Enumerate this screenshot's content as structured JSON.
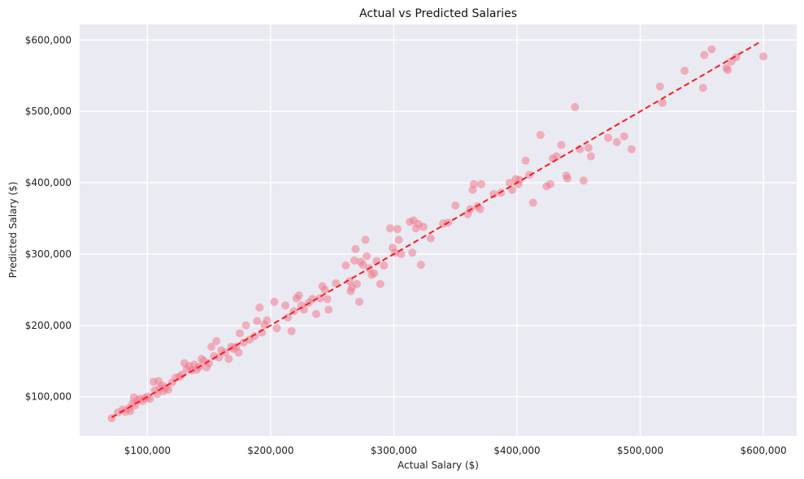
{
  "chart_data": {
    "type": "scatter",
    "title": "Actual vs Predicted Salaries",
    "xlabel": "Actual Salary ($)",
    "ylabel": "Predicted Salary ($)",
    "xlim": [
      45000,
      627000
    ],
    "ylim": [
      45000,
      622000
    ],
    "xticks": [
      100000,
      200000,
      300000,
      400000,
      500000,
      600000
    ],
    "xtick_labels": [
      "$100,000",
      "$200,000",
      "$300,000",
      "$400,000",
      "$500,000",
      "$600,000"
    ],
    "yticks": [
      100000,
      200000,
      300000,
      400000,
      500000,
      600000
    ],
    "ytick_labels": [
      "$100,000",
      "$200,000",
      "$300,000",
      "$400,000",
      "$500,000",
      "$600,000"
    ],
    "grid": true,
    "background_color": "#eaeaf2",
    "point_color": "#f07a90",
    "line_color": "#ff1a1a",
    "reference_line": {
      "style": "dashed",
      "x": [
        71000,
        598000
      ],
      "y": [
        71000,
        598000
      ]
    },
    "points": [
      [
        71000,
        70000
      ],
      [
        76000,
        78000
      ],
      [
        80000,
        82000
      ],
      [
        82000,
        79000
      ],
      [
        85000,
        84000
      ],
      [
        86000,
        80000
      ],
      [
        88000,
        91000
      ],
      [
        89000,
        99000
      ],
      [
        90000,
        88000
      ],
      [
        92000,
        95000
      ],
      [
        94000,
        97000
      ],
      [
        96000,
        94000
      ],
      [
        98000,
        98000
      ],
      [
        100000,
        100000
      ],
      [
        102000,
        97000
      ],
      [
        105000,
        121000
      ],
      [
        106000,
        109000
      ],
      [
        108000,
        104000
      ],
      [
        109000,
        122000
      ],
      [
        110000,
        112000
      ],
      [
        112000,
        116000
      ],
      [
        113000,
        108000
      ],
      [
        115000,
        113000
      ],
      [
        117000,
        110000
      ],
      [
        120000,
        120000
      ],
      [
        123000,
        127000
      ],
      [
        126000,
        128000
      ],
      [
        128000,
        131000
      ],
      [
        130000,
        147000
      ],
      [
        132000,
        139000
      ],
      [
        134000,
        143000
      ],
      [
        136000,
        137000
      ],
      [
        138000,
        145000
      ],
      [
        140000,
        138000
      ],
      [
        142000,
        142000
      ],
      [
        144000,
        153000
      ],
      [
        146000,
        150000
      ],
      [
        148000,
        141000
      ],
      [
        150000,
        147000
      ],
      [
        152000,
        170000
      ],
      [
        154000,
        157000
      ],
      [
        156000,
        178000
      ],
      [
        158000,
        155000
      ],
      [
        160000,
        165000
      ],
      [
        163000,
        162000
      ],
      [
        166000,
        153000
      ],
      [
        168000,
        170000
      ],
      [
        170000,
        167000
      ],
      [
        172000,
        170000
      ],
      [
        174000,
        162000
      ],
      [
        175000,
        189000
      ],
      [
        178000,
        176000
      ],
      [
        180000,
        200000
      ],
      [
        183000,
        180000
      ],
      [
        187000,
        185000
      ],
      [
        189000,
        206000
      ],
      [
        191000,
        225000
      ],
      [
        193000,
        190000
      ],
      [
        195000,
        201000
      ],
      [
        197000,
        207000
      ],
      [
        203000,
        233000
      ],
      [
        205000,
        196000
      ],
      [
        212000,
        228000
      ],
      [
        214000,
        211000
      ],
      [
        217000,
        192000
      ],
      [
        219000,
        220000
      ],
      [
        221000,
        238000
      ],
      [
        223000,
        242000
      ],
      [
        225000,
        228000
      ],
      [
        227000,
        222000
      ],
      [
        231000,
        232000
      ],
      [
        234000,
        237000
      ],
      [
        237000,
        216000
      ],
      [
        240000,
        238000
      ],
      [
        242000,
        255000
      ],
      [
        244000,
        250000
      ],
      [
        246000,
        237000
      ],
      [
        247000,
        222000
      ],
      [
        253000,
        259000
      ],
      [
        261000,
        284000
      ],
      [
        264000,
        262000
      ],
      [
        265000,
        248000
      ],
      [
        266000,
        253000
      ],
      [
        268000,
        291000
      ],
      [
        269000,
        307000
      ],
      [
        270000,
        258000
      ],
      [
        272000,
        233000
      ],
      [
        273000,
        289000
      ],
      [
        275000,
        285000
      ],
      [
        277000,
        320000
      ],
      [
        278000,
        297000
      ],
      [
        280000,
        280000
      ],
      [
        282000,
        271000
      ],
      [
        284000,
        273000
      ],
      [
        286000,
        290000
      ],
      [
        289000,
        258000
      ],
      [
        292000,
        284000
      ],
      [
        297000,
        336000
      ],
      [
        299000,
        309000
      ],
      [
        301000,
        302000
      ],
      [
        303000,
        335000
      ],
      [
        304000,
        320000
      ],
      [
        306000,
        300000
      ],
      [
        313000,
        345000
      ],
      [
        315000,
        302000
      ],
      [
        316000,
        347000
      ],
      [
        318000,
        336000
      ],
      [
        320000,
        342000
      ],
      [
        322000,
        285000
      ],
      [
        324000,
        338000
      ],
      [
        330000,
        322000
      ],
      [
        340000,
        343000
      ],
      [
        344000,
        344000
      ],
      [
        350000,
        368000
      ],
      [
        360000,
        356000
      ],
      [
        362000,
        363000
      ],
      [
        364000,
        390000
      ],
      [
        365000,
        398000
      ],
      [
        368000,
        367000
      ],
      [
        370000,
        363000
      ],
      [
        371000,
        398000
      ],
      [
        381000,
        384000
      ],
      [
        387000,
        386000
      ],
      [
        394000,
        400000
      ],
      [
        396000,
        390000
      ],
      [
        399000,
        405000
      ],
      [
        401000,
        398000
      ],
      [
        402000,
        404000
      ],
      [
        407000,
        431000
      ],
      [
        410000,
        411000
      ],
      [
        413000,
        372000
      ],
      [
        419000,
        467000
      ],
      [
        424000,
        395000
      ],
      [
        427000,
        398000
      ],
      [
        429000,
        434000
      ],
      [
        432000,
        437000
      ],
      [
        436000,
        453000
      ],
      [
        440000,
        410000
      ],
      [
        441000,
        406000
      ],
      [
        447000,
        506000
      ],
      [
        451000,
        447000
      ],
      [
        454000,
        403000
      ],
      [
        458000,
        449000
      ],
      [
        460000,
        437000
      ],
      [
        474000,
        463000
      ],
      [
        481000,
        457000
      ],
      [
        487000,
        465000
      ],
      [
        493000,
        447000
      ],
      [
        516000,
        535000
      ],
      [
        518000,
        512000
      ],
      [
        536000,
        557000
      ],
      [
        551000,
        533000
      ],
      [
        552000,
        579000
      ],
      [
        558000,
        587000
      ],
      [
        570000,
        561000
      ],
      [
        571000,
        558000
      ],
      [
        574000,
        570000
      ],
      [
        578000,
        576000
      ],
      [
        600000,
        577000
      ]
    ]
  }
}
